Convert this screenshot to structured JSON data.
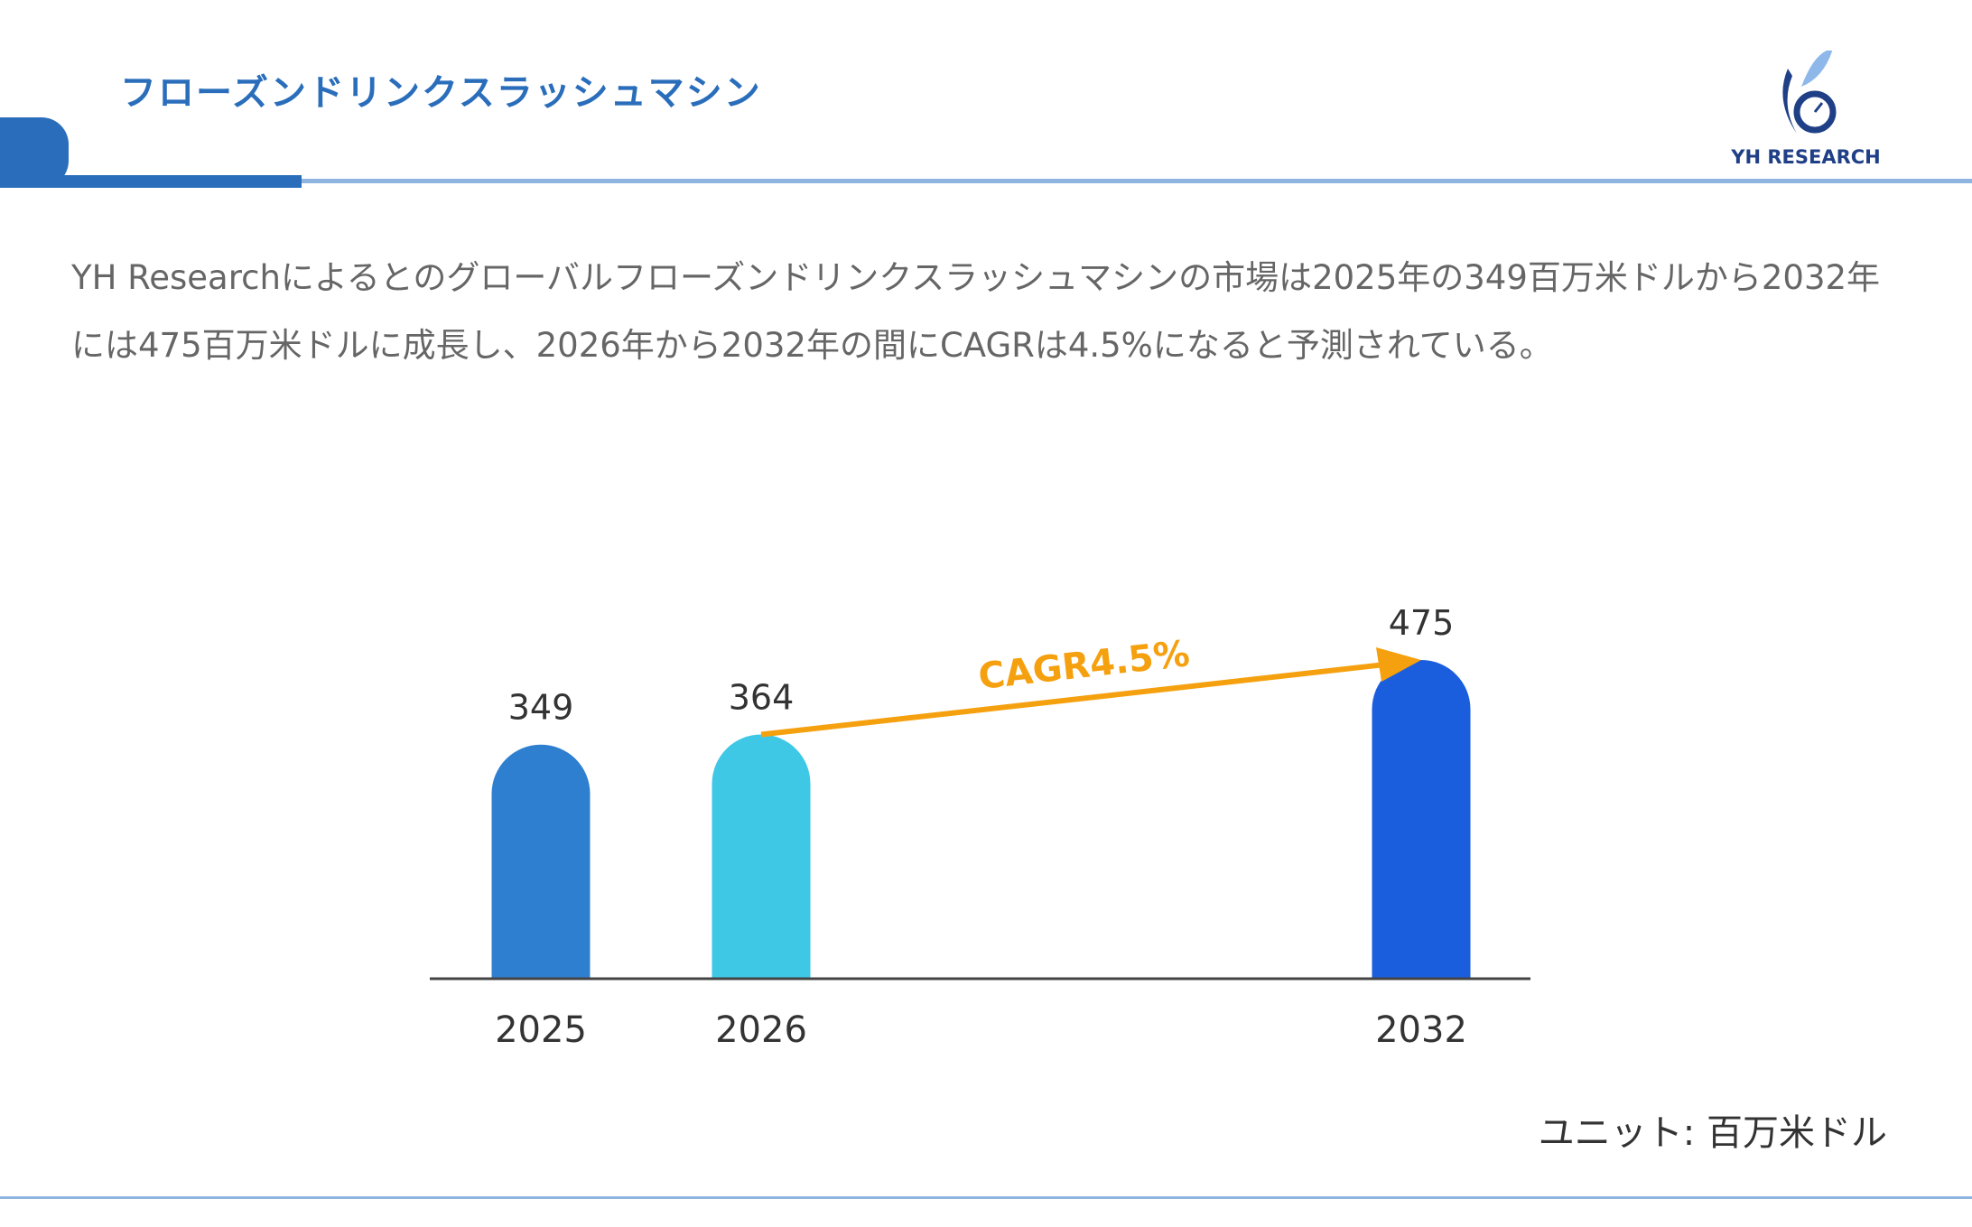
{
  "header": {
    "title": "フローズンドリンクスラッシュマシン",
    "logo_text": "YH RESEARCH"
  },
  "description": "YH Researchによるとのグローバルフローズンドリンクスラッシュマシンの市場は2025年の349百万米ドルから2032年には475百万米ドルに成長し、2026年から2032年の間にCAGRは4.5%になると予測されている。",
  "colors": {
    "accent": "#2a6ebb",
    "line": "#8fb4e0",
    "arrow": "#f5a00f"
  },
  "chart_data": {
    "type": "bar",
    "categories": [
      "2025",
      "2026",
      "2032"
    ],
    "values": [
      349,
      364,
      475
    ],
    "colors": [
      "#2f7fd0",
      "#3ec8e6",
      "#1a5ede"
    ],
    "annotation": "CAGR4.5%",
    "unit_label": "ユニット: 百万米ドル",
    "ylim": [
      0,
      475
    ],
    "grid": false
  }
}
